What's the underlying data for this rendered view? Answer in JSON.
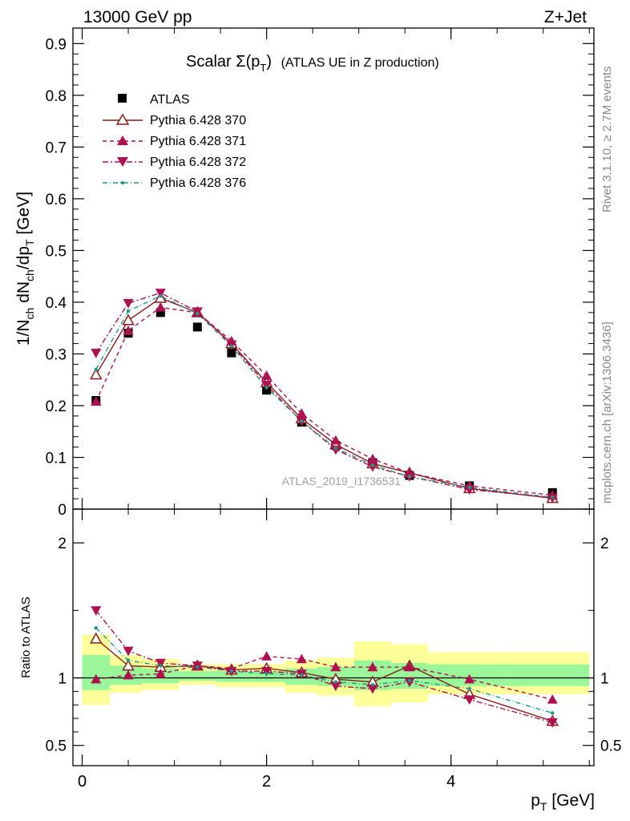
{
  "header": {
    "left": "13000 GeV pp",
    "right": "Z+Jet"
  },
  "side_text": {
    "rivet": "Rivet 3.1.10, ≥ 2.7M events",
    "mcplots": "mcplots.cern.ch [arXiv:1306.3436]"
  },
  "chart_data": [
    {
      "type": "scatter",
      "panel": "main",
      "title_main": "Scalar Σ(p",
      "title_sub": "T",
      "title_close": ")",
      "title_rest": "(ATLAS UE in Z production)",
      "ylabel": "1/N_ch dN_ch/dp_T [GeV]",
      "ylabel_parts": {
        "a": "1/N",
        "a_sub": "ch",
        "b": " dN",
        "b_sub": "ch",
        "c": "/dp",
        "c_sub": "T",
        "d": " [GeV]"
      },
      "watermark": "ATLAS_2019_I1736531",
      "xlim": [
        -0.1,
        5.55
      ],
      "ylim": [
        0,
        0.93
      ],
      "yticks": [
        {
          "v": 0,
          "label": "0"
        },
        {
          "v": 0.1,
          "label": "0.1"
        },
        {
          "v": 0.2,
          "label": "0.2"
        },
        {
          "v": 0.3,
          "label": "0.3"
        },
        {
          "v": 0.4,
          "label": "0.4"
        },
        {
          "v": 0.5,
          "label": "0.5"
        },
        {
          "v": 0.6,
          "label": "0.6"
        },
        {
          "v": 0.7,
          "label": "0.7"
        },
        {
          "v": 0.8,
          "label": "0.8"
        },
        {
          "v": 0.9,
          "label": "0.9"
        }
      ],
      "x": [
        0.15,
        0.5,
        0.85,
        1.25,
        1.62,
        2.0,
        2.38,
        2.75,
        3.15,
        3.55,
        4.2,
        5.1
      ],
      "data": {
        "name": "ATLAS",
        "values": [
          0.21,
          0.34,
          0.38,
          0.352,
          0.302,
          0.23,
          0.168,
          0.123,
          0.09,
          0.065,
          0.045,
          0.032
        ]
      },
      "series": [
        {
          "name": "Pythia 6.428 370",
          "color": "#8b1a1a",
          "dash": "",
          "marker": "tri-up-open",
          "values": [
            0.26,
            0.365,
            0.408,
            0.38,
            0.32,
            0.245,
            0.175,
            0.125,
            0.088,
            0.07,
            0.04,
            0.021
          ]
        },
        {
          "name": "Pythia 6.428 371",
          "color": "#b0104f",
          "dash": "5,4",
          "marker": "tri-up",
          "values": [
            0.208,
            0.345,
            0.39,
            0.38,
            0.325,
            0.258,
            0.185,
            0.133,
            0.097,
            0.07,
            0.045,
            0.027
          ]
        },
        {
          "name": "Pythia 6.428 372",
          "color": "#b0104f",
          "dash": "7,3,2,3",
          "marker": "tri-down",
          "values": [
            0.302,
            0.398,
            0.418,
            0.382,
            0.318,
            0.24,
            0.17,
            0.115,
            0.082,
            0.063,
            0.038,
            0.022
          ]
        },
        {
          "name": "Pythia 6.428 376",
          "color": "#1a9a8a",
          "dash": "6,3,1,3",
          "marker": "dot",
          "values": [
            0.27,
            0.383,
            0.412,
            0.378,
            0.315,
            0.235,
            0.17,
            0.118,
            0.085,
            0.063,
            0.042,
            0.023
          ]
        }
      ]
    },
    {
      "type": "scatter",
      "panel": "ratio",
      "ylabel": "Ratio to ATLAS",
      "xlabel_main": "p",
      "xlabel_sub": "T",
      "xlabel_rest": " [GeV]",
      "xlim": [
        -0.1,
        5.55
      ],
      "ylim": [
        0.35,
        2.25
      ],
      "yticks": [
        {
          "v": 0.5,
          "label": "0.5"
        },
        {
          "v": 1,
          "label": "1"
        },
        {
          "v": 2,
          "label": "2"
        }
      ],
      "xticks": [
        {
          "v": 0,
          "label": "0"
        },
        {
          "v": 2,
          "label": "2"
        },
        {
          "v": 4,
          "label": "4"
        }
      ],
      "bands": [
        {
          "x0": 0.0,
          "x1": 0.3,
          "y_lo": 0.8,
          "y_hi": 1.32,
          "g_lo": 0.91,
          "g_hi": 1.17
        },
        {
          "x0": 0.3,
          "x1": 0.65,
          "y_lo": 0.89,
          "y_hi": 1.17,
          "g_lo": 0.95,
          "g_hi": 1.09
        },
        {
          "x0": 0.65,
          "x1": 1.05,
          "y_lo": 0.91,
          "y_hi": 1.14,
          "g_lo": 0.96,
          "g_hi": 1.07
        },
        {
          "x0": 1.05,
          "x1": 1.45,
          "y_lo": 0.95,
          "y_hi": 1.1,
          "g_lo": 0.98,
          "g_hi": 1.05
        },
        {
          "x0": 1.45,
          "x1": 1.8,
          "y_lo": 0.93,
          "y_hi": 1.1,
          "g_lo": 0.97,
          "g_hi": 1.05
        },
        {
          "x0": 1.8,
          "x1": 2.2,
          "y_lo": 0.93,
          "y_hi": 1.1,
          "g_lo": 0.97,
          "g_hi": 1.05
        },
        {
          "x0": 2.2,
          "x1": 2.55,
          "y_lo": 0.89,
          "y_hi": 1.13,
          "g_lo": 0.95,
          "g_hi": 1.07
        },
        {
          "x0": 2.55,
          "x1": 2.95,
          "y_lo": 0.87,
          "y_hi": 1.15,
          "g_lo": 0.94,
          "g_hi": 1.08
        },
        {
          "x0": 2.95,
          "x1": 3.35,
          "y_lo": 0.79,
          "y_hi": 1.27,
          "g_lo": 0.91,
          "g_hi": 1.13
        },
        {
          "x0": 3.35,
          "x1": 3.75,
          "y_lo": 0.82,
          "y_hi": 1.25,
          "g_lo": 0.92,
          "g_hi": 1.11
        },
        {
          "x0": 3.75,
          "x1": 4.6,
          "y_lo": 0.88,
          "y_hi": 1.19,
          "g_lo": 0.94,
          "g_hi": 1.1
        },
        {
          "x0": 4.6,
          "x1": 5.5,
          "y_lo": 0.88,
          "y_hi": 1.19,
          "g_lo": 0.94,
          "g_hi": 1.1
        }
      ],
      "x": [
        0.15,
        0.5,
        0.85,
        1.25,
        1.62,
        2.0,
        2.38,
        2.75,
        3.15,
        3.55,
        4.2,
        5.1
      ],
      "series": [
        {
          "name": "Pythia 6.428 370",
          "values": [
            1.29,
            1.09,
            1.08,
            1.09,
            1.06,
            1.07,
            1.04,
            0.99,
            0.97,
            1.09,
            0.88,
            0.68
          ]
        },
        {
          "name": "Pythia 6.428 371",
          "values": [
            0.99,
            1.02,
            1.03,
            1.09,
            1.07,
            1.16,
            1.14,
            1.08,
            1.08,
            1.08,
            0.99,
            0.84
          ]
        },
        {
          "name": "Pythia 6.428 372",
          "values": [
            1.5,
            1.2,
            1.11,
            1.09,
            1.05,
            1.05,
            1.03,
            0.94,
            0.92,
            0.97,
            0.84,
            0.67
          ]
        },
        {
          "name": "Pythia 6.428 376",
          "values": [
            1.37,
            1.13,
            1.09,
            1.08,
            1.05,
            1.03,
            1.02,
            0.97,
            0.95,
            0.98,
            0.92,
            0.74
          ]
        }
      ]
    }
  ]
}
